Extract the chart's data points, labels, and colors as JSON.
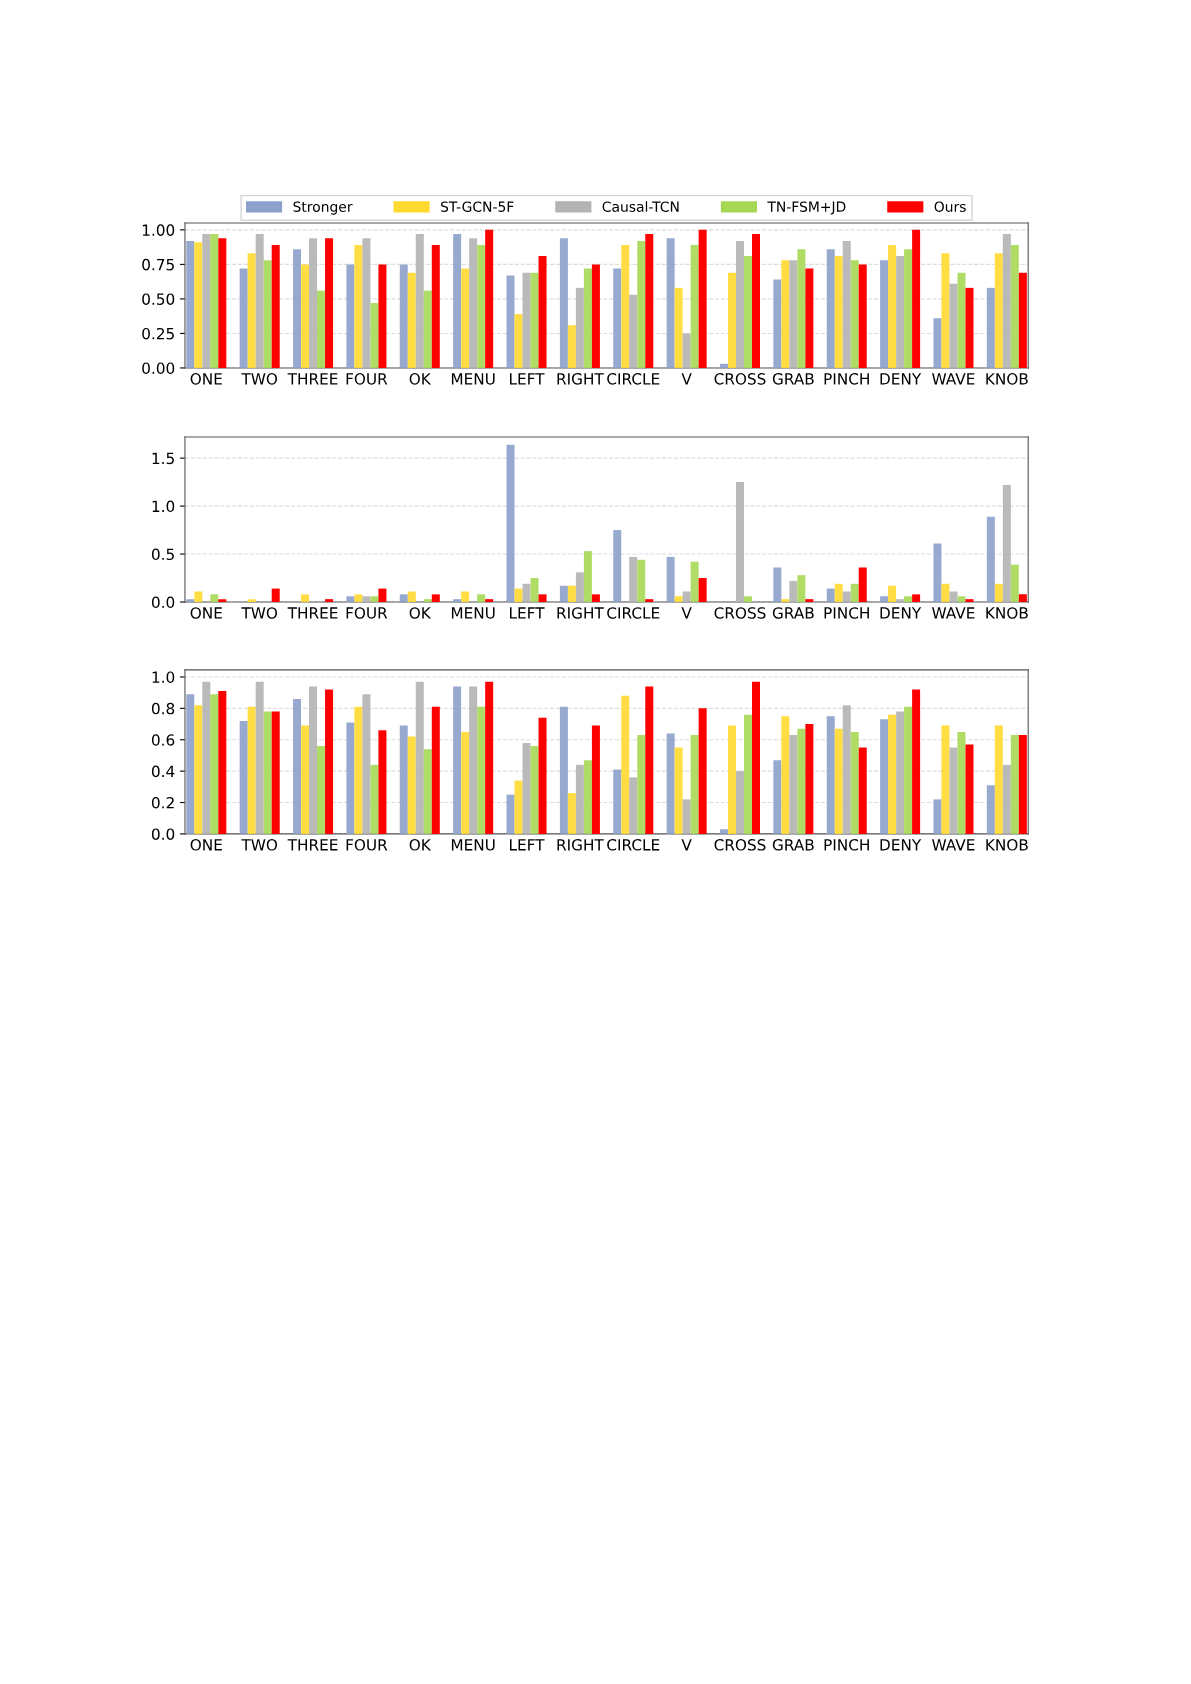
{
  "chart_data": [
    {
      "type": "bar",
      "legend": "top",
      "grid": "y",
      "categories": [
        "ONE",
        "TWO",
        "THREE",
        "FOUR",
        "OK",
        "MENU",
        "LEFT",
        "RIGHT",
        "CIRCLE",
        "V",
        "CROSS",
        "GRAB",
        "PINCH",
        "DENY",
        "WAVE",
        "KNOB"
      ],
      "ylim": [
        0,
        1.05
      ],
      "yticks": [
        {
          "value": 0,
          "label": "0.00"
        },
        {
          "value": 0.25,
          "label": "0.25"
        },
        {
          "value": 0.5,
          "label": "0.50"
        },
        {
          "value": 0.75,
          "label": "0.75"
        },
        {
          "value": 1.0,
          "label": "1.00"
        }
      ],
      "series": [
        {
          "name": "Stronger",
          "color": "#8da0cb",
          "values": [
            0.92,
            0.72,
            0.86,
            0.75,
            0.75,
            0.97,
            0.67,
            0.94,
            0.72,
            0.94,
            0.03,
            0.64,
            0.86,
            0.78,
            0.36,
            0.58
          ]
        },
        {
          "name": "ST-GCN-5F",
          "color": "#ffd92f",
          "values": [
            0.91,
            0.83,
            0.75,
            0.89,
            0.69,
            0.72,
            0.39,
            0.31,
            0.89,
            0.58,
            0.69,
            0.78,
            0.81,
            0.89,
            0.83,
            0.83
          ]
        },
        {
          "name": "Causal-TCN",
          "color": "#b3b3b3",
          "values": [
            0.97,
            0.97,
            0.94,
            0.94,
            0.97,
            0.94,
            0.69,
            0.58,
            0.53,
            0.25,
            0.92,
            0.78,
            0.92,
            0.81,
            0.61,
            0.97
          ]
        },
        {
          "name": "TN-FSM+JD",
          "color": "#a6d854",
          "values": [
            0.97,
            0.78,
            0.56,
            0.47,
            0.56,
            0.89,
            0.69,
            0.72,
            0.92,
            0.89,
            0.81,
            0.86,
            0.78,
            0.86,
            0.69,
            0.89
          ]
        },
        {
          "name": "Ours",
          "color": "#ff0000",
          "values": [
            0.94,
            0.89,
            0.94,
            0.75,
            0.89,
            1.0,
            0.81,
            0.75,
            0.97,
            1.0,
            0.97,
            0.72,
            0.75,
            1.0,
            0.58,
            0.69
          ]
        }
      ]
    },
    {
      "type": "bar",
      "grid": "y",
      "categories": [
        "ONE",
        "TWO",
        "THREE",
        "FOUR",
        "OK",
        "MENU",
        "LEFT",
        "RIGHT",
        "CIRCLE",
        "V",
        "CROSS",
        "GRAB",
        "PINCH",
        "DENY",
        "WAVE",
        "KNOB"
      ],
      "ylim": [
        0,
        1.72
      ],
      "yticks": [
        {
          "value": 0,
          "label": "0.0"
        },
        {
          "value": 0.5,
          "label": "0.5"
        },
        {
          "value": 1.0,
          "label": "1.0"
        },
        {
          "value": 1.5,
          "label": "1.5"
        }
      ],
      "series": [
        {
          "color": "#8da0cb",
          "values": [
            0.03,
            0,
            0,
            0.06,
            0.08,
            0.03,
            1.64,
            0.17,
            0.75,
            0.47,
            0,
            0.36,
            0.14,
            0.06,
            0.61,
            0.89
          ]
        },
        {
          "color": "#ffd92f",
          "values": [
            0.11,
            0.03,
            0.08,
            0.08,
            0.11,
            0.11,
            0.14,
            0.17,
            0,
            0.06,
            0,
            0.03,
            0.19,
            0.17,
            0.19,
            0.19
          ]
        },
        {
          "color": "#b3b3b3",
          "values": [
            0,
            0,
            0,
            0.06,
            0,
            0,
            0.19,
            0.31,
            0.47,
            0.11,
            1.25,
            0.22,
            0.11,
            0.03,
            0.11,
            1.22
          ]
        },
        {
          "color": "#a6d854",
          "values": [
            0.08,
            0,
            0,
            0.06,
            0.03,
            0.08,
            0.25,
            0.53,
            0.44,
            0.42,
            0.06,
            0.28,
            0.19,
            0.06,
            0.06,
            0.39
          ]
        },
        {
          "color": "#ff0000",
          "values": [
            0.03,
            0.14,
            0.03,
            0.14,
            0.08,
            0.03,
            0.08,
            0.08,
            0.03,
            0.25,
            0,
            0.03,
            0.36,
            0.08,
            0.03,
            0.08
          ]
        }
      ]
    },
    {
      "type": "bar",
      "grid": "y",
      "categories": [
        "ONE",
        "TWO",
        "THREE",
        "FOUR",
        "OK",
        "MENU",
        "LEFT",
        "RIGHT",
        "CIRCLE",
        "V",
        "CROSS",
        "GRAB",
        "PINCH",
        "DENY",
        "WAVE",
        "KNOB"
      ],
      "ylim": [
        0,
        1.045
      ],
      "yticks": [
        {
          "value": 0,
          "label": "0.0"
        },
        {
          "value": 0.2,
          "label": "0.2"
        },
        {
          "value": 0.4,
          "label": "0.4"
        },
        {
          "value": 0.6,
          "label": "0.6"
        },
        {
          "value": 0.8,
          "label": "0.8"
        },
        {
          "value": 1.0,
          "label": "1.0"
        }
      ],
      "series": [
        {
          "color": "#8da0cb",
          "values": [
            0.89,
            0.72,
            0.86,
            0.71,
            0.69,
            0.94,
            0.25,
            0.81,
            0.41,
            0.64,
            0.03,
            0.47,
            0.75,
            0.73,
            0.22,
            0.31
          ]
        },
        {
          "color": "#ffd92f",
          "values": [
            0.82,
            0.81,
            0.69,
            0.81,
            0.62,
            0.65,
            0.34,
            0.26,
            0.88,
            0.55,
            0.69,
            0.75,
            0.67,
            0.76,
            0.69,
            0.69
          ]
        },
        {
          "color": "#b3b3b3",
          "values": [
            0.97,
            0.97,
            0.94,
            0.89,
            0.97,
            0.94,
            0.58,
            0.44,
            0.36,
            0.22,
            0.4,
            0.63,
            0.82,
            0.78,
            0.55,
            0.44
          ]
        },
        {
          "color": "#a6d854",
          "values": [
            0.89,
            0.78,
            0.56,
            0.44,
            0.54,
            0.81,
            0.56,
            0.47,
            0.63,
            0.63,
            0.76,
            0.67,
            0.65,
            0.81,
            0.65,
            0.63
          ]
        },
        {
          "color": "#ff0000",
          "values": [
            0.91,
            0.78,
            0.92,
            0.66,
            0.81,
            0.97,
            0.74,
            0.69,
            0.94,
            0.8,
            0.97,
            0.7,
            0.55,
            0.92,
            0.57,
            0.63
          ]
        }
      ]
    }
  ]
}
